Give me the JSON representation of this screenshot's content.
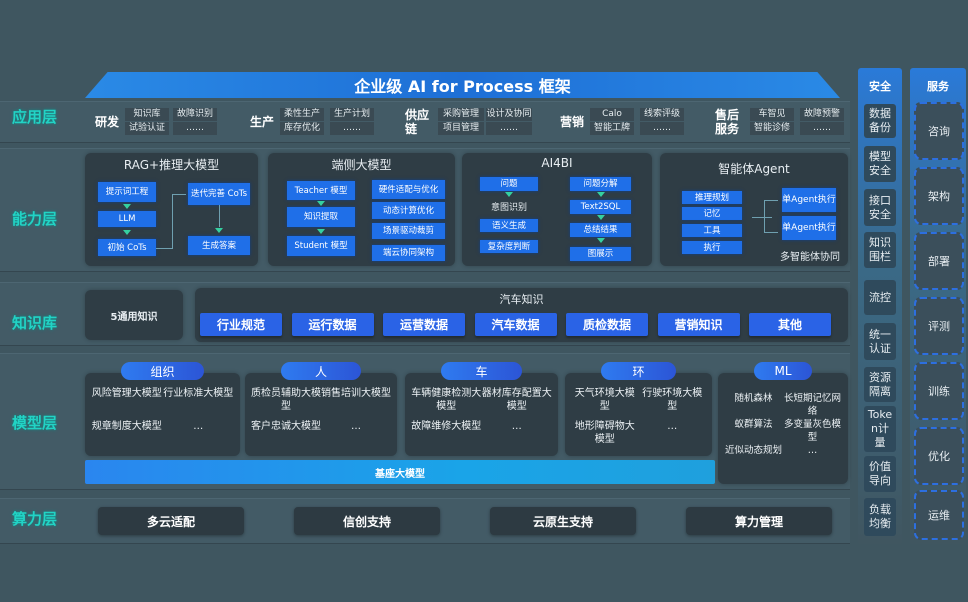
{
  "title": "企业级 AI for Process 框架",
  "layers": {
    "application": "应用层",
    "capability": "能力层",
    "knowledge": "知识库",
    "model": "模型层",
    "compute": "算力层"
  },
  "application": [
    {
      "name": "研发",
      "items": [
        "知识库",
        "故障识别",
        "试验认证",
        "……"
      ]
    },
    {
      "name": "生产",
      "items": [
        "柔性生产",
        "生产计划",
        "库存优化",
        "……"
      ]
    },
    {
      "name": "供应链",
      "items": [
        "采购管理",
        "设计及协同",
        "项目管理",
        "……"
      ]
    },
    {
      "name": "营销",
      "items": [
        "Calo",
        "线索评级",
        "智能工牌",
        "……"
      ]
    },
    {
      "name": "售后服务",
      "items": [
        "车智见",
        "故障预警",
        "智能诊修",
        "……"
      ]
    }
  ],
  "capability": {
    "rag": {
      "title": "RAG+推理大模型",
      "boxes": [
        "提示词工程",
        "LLM",
        "初始 CoTs",
        "迭代完善 CoTs",
        "生成答案"
      ]
    },
    "edge": {
      "title": "端侧大模型",
      "boxes": [
        "Teacher 模型",
        "知识提取",
        "Student 模型",
        "硬件适配与优化",
        "动态计算优化",
        "场景驱动裁剪",
        "端云协同架构"
      ]
    },
    "ai4bi": {
      "title": "AI4BI",
      "boxes": [
        "问题",
        "意图识别",
        "语义生成",
        "复杂度判断",
        "问题分解",
        "Text2SQL",
        "总结结果",
        "图展示"
      ]
    },
    "agent": {
      "title": "智能体Agent",
      "boxes": [
        "推理规划",
        "记忆",
        "工具",
        "执行",
        "单Agent执行",
        "单Agent执行"
      ],
      "footer": "多智能体协同"
    }
  },
  "knowledge": {
    "general": "5通用知识",
    "auto_title": "汽车知识",
    "items": [
      "行业规范",
      "运行数据",
      "运营数据",
      "汽车数据",
      "质检数据",
      "营销知识",
      "其他"
    ]
  },
  "model": {
    "groups": [
      {
        "name": "组织",
        "items": [
          "风险管理大模型",
          "行业标准大模型",
          "规章制度大模型",
          "…"
        ]
      },
      {
        "name": "人",
        "items": [
          "质检员辅助大模型",
          "销售培训大模型",
          "客户忠诚大模型",
          "…"
        ]
      },
      {
        "name": "车",
        "items": [
          "车辆健康检测大模型",
          "器材库存配置大模型",
          "故障维修大模型",
          "…"
        ]
      },
      {
        "name": "环",
        "items": [
          "天气环境大模型",
          "行驶环境大模型",
          "地形障碍物大模型",
          "…"
        ]
      },
      {
        "name": "ML",
        "items": [
          "随机森林",
          "长短期记忆网络",
          "蚁群算法",
          "多变量灰色模型",
          "近似动态规划",
          "…"
        ]
      }
    ],
    "base": "基座大模型"
  },
  "compute": [
    "多云适配",
    "信创支持",
    "云原生支持",
    "算力管理"
  ],
  "security": {
    "title": "安全",
    "items": [
      "数据备份",
      "模型安全",
      "接口安全",
      "知识围栏",
      "流控",
      "统一认证",
      "资源隔离",
      "Token计量",
      "价值导向",
      "负载均衡"
    ]
  },
  "service": {
    "title": "服务",
    "items": [
      "咨询",
      "架构",
      "部署",
      "评测",
      "训练",
      "优化",
      "运维"
    ]
  },
  "colors": {
    "background": "#3f5660",
    "accent_teal": "#22d3c5",
    "box_blue": "#1f6fe8",
    "panel": "#2f3d45"
  }
}
